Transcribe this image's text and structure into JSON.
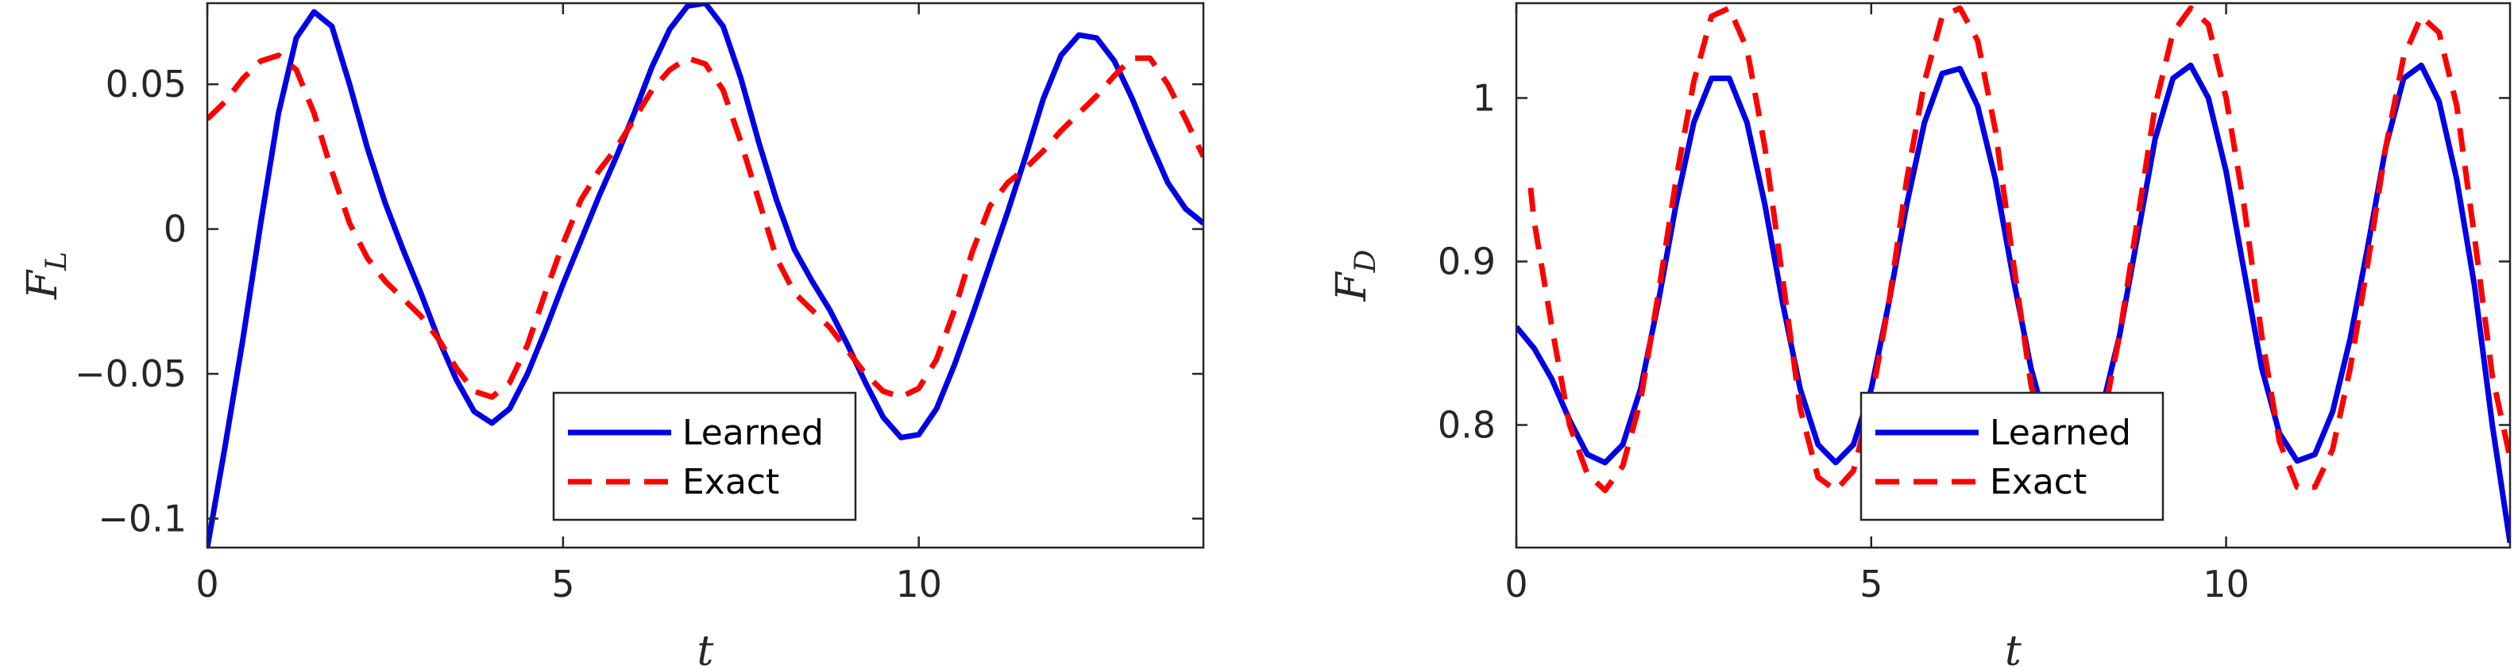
{
  "chart_data": [
    {
      "type": "line",
      "xlabel": "t",
      "ylabel": "F",
      "ylabel_sub": "L",
      "xlim": [
        0,
        14
      ],
      "ylim": [
        -0.11,
        0.078
      ],
      "xticks": [
        0,
        5,
        10
      ],
      "xtick_labels": [
        "0",
        "5",
        "10"
      ],
      "yticks": [
        -0.1,
        -0.05,
        0,
        0.05
      ],
      "ytick_labels": [
        "−0.1",
        "−0.05",
        "0",
        "0.05"
      ],
      "grid": false,
      "legend_placement": "bottom-center",
      "series": [
        {
          "name": "Learned",
          "color": "#0000e6",
          "dash": "solid",
          "x": [
            0,
            0.25,
            0.5,
            0.75,
            1.0,
            1.25,
            1.5,
            1.75,
            2.0,
            2.25,
            2.5,
            2.75,
            3.0,
            3.25,
            3.5,
            3.75,
            4.0,
            4.25,
            4.5,
            4.75,
            5.0,
            5.25,
            5.5,
            5.75,
            6.0,
            6.25,
            6.5,
            6.75,
            7.0,
            7.25,
            7.5,
            7.75,
            8.0,
            8.25,
            8.5,
            8.75,
            9.0,
            9.25,
            9.5,
            9.75,
            10.0,
            10.25,
            10.5,
            10.75,
            11.0,
            11.25,
            11.5,
            11.75,
            12.0,
            12.25,
            12.5,
            12.75,
            13.0,
            13.25,
            13.5,
            13.75,
            14.0
          ],
          "y": [
            -0.11,
            -0.075,
            -0.038,
            0.002,
            0.04,
            0.066,
            0.075,
            0.07,
            0.05,
            0.028,
            0.009,
            -0.007,
            -0.022,
            -0.038,
            -0.052,
            -0.063,
            -0.067,
            -0.062,
            -0.05,
            -0.035,
            -0.019,
            -0.004,
            0.011,
            0.025,
            0.04,
            0.056,
            0.069,
            0.077,
            0.078,
            0.07,
            0.052,
            0.03,
            0.01,
            -0.007,
            -0.018,
            -0.028,
            -0.04,
            -0.053,
            -0.065,
            -0.072,
            -0.071,
            -0.062,
            -0.047,
            -0.03,
            -0.012,
            0.006,
            0.025,
            0.045,
            0.06,
            0.067,
            0.066,
            0.058,
            0.045,
            0.03,
            0.016,
            0.007,
            0.002
          ]
        },
        {
          "name": "Exact",
          "color": "#ff0000",
          "dash": "dashed",
          "x": [
            0,
            0.25,
            0.5,
            0.75,
            1.0,
            1.25,
            1.5,
            1.75,
            2.0,
            2.25,
            2.5,
            2.75,
            3.0,
            3.25,
            3.5,
            3.75,
            4.0,
            4.25,
            4.5,
            4.75,
            5.0,
            5.25,
            5.5,
            5.75,
            6.0,
            6.25,
            6.5,
            6.75,
            7.0,
            7.25,
            7.5,
            7.75,
            8.0,
            8.25,
            8.5,
            8.75,
            9.0,
            9.25,
            9.5,
            9.75,
            10.0,
            10.25,
            10.5,
            10.75,
            11.0,
            11.25,
            11.5,
            11.75,
            12.0,
            12.25,
            12.5,
            12.75,
            13.0,
            13.25,
            13.5,
            13.75,
            14.0
          ],
          "y": [
            0.038,
            0.044,
            0.052,
            0.058,
            0.06,
            0.055,
            0.04,
            0.02,
            0.002,
            -0.01,
            -0.018,
            -0.024,
            -0.03,
            -0.038,
            -0.048,
            -0.056,
            -0.058,
            -0.053,
            -0.04,
            -0.022,
            -0.005,
            0.01,
            0.02,
            0.028,
            0.038,
            0.048,
            0.055,
            0.059,
            0.057,
            0.048,
            0.03,
            0.01,
            -0.01,
            -0.022,
            -0.028,
            -0.034,
            -0.042,
            -0.05,
            -0.056,
            -0.058,
            -0.055,
            -0.045,
            -0.028,
            -0.008,
            0.008,
            0.016,
            0.021,
            0.027,
            0.034,
            0.04,
            0.046,
            0.053,
            0.059,
            0.059,
            0.05,
            0.038,
            0.025
          ]
        }
      ]
    },
    {
      "type": "line",
      "xlabel": "t",
      "ylabel": "F",
      "ylabel_sub": "D",
      "xlim": [
        0,
        14
      ],
      "ylim": [
        0.725,
        1.058
      ],
      "xticks": [
        0,
        5,
        10
      ],
      "xtick_labels": [
        "0",
        "5",
        "10"
      ],
      "yticks": [
        0.8,
        0.9,
        1.0
      ],
      "ytick_labels": [
        "0.8",
        "0.9",
        "1"
      ],
      "grid": false,
      "legend_placement": "bottom-center",
      "series": [
        {
          "name": "Learned",
          "color": "#0000e6",
          "dash": "solid",
          "x": [
            0,
            0.25,
            0.5,
            0.75,
            1.0,
            1.25,
            1.5,
            1.75,
            2.0,
            2.25,
            2.5,
            2.75,
            3.0,
            3.25,
            3.5,
            3.75,
            4.0,
            4.25,
            4.5,
            4.75,
            5.0,
            5.25,
            5.5,
            5.75,
            6.0,
            6.25,
            6.5,
            6.75,
            7.0,
            7.25,
            7.5,
            7.75,
            8.0,
            8.25,
            8.5,
            8.75,
            9.0,
            9.25,
            9.5,
            9.75,
            10.0,
            10.25,
            10.5,
            10.75,
            11.0,
            11.25,
            11.5,
            11.75,
            12.0,
            12.25,
            12.5,
            12.75,
            13.0,
            13.25,
            13.5,
            13.75,
            14.0
          ],
          "y": [
            0.86,
            0.847,
            0.828,
            0.803,
            0.782,
            0.777,
            0.788,
            0.822,
            0.875,
            0.935,
            0.985,
            1.012,
            1.012,
            0.985,
            0.935,
            0.875,
            0.822,
            0.788,
            0.777,
            0.788,
            0.822,
            0.875,
            0.935,
            0.985,
            1.015,
            1.018,
            0.995,
            0.95,
            0.89,
            0.835,
            0.795,
            0.778,
            0.785,
            0.81,
            0.855,
            0.915,
            0.975,
            1.012,
            1.02,
            1.0,
            0.955,
            0.895,
            0.835,
            0.795,
            0.778,
            0.782,
            0.808,
            0.853,
            0.91,
            0.97,
            1.012,
            1.02,
            0.998,
            0.95,
            0.885,
            0.8,
            0.728
          ]
        },
        {
          "name": "Exact",
          "color": "#ff0000",
          "dash": "dashed",
          "x": [
            0.2,
            0.25,
            0.5,
            0.75,
            1.0,
            1.25,
            1.5,
            1.75,
            2.0,
            2.25,
            2.5,
            2.75,
            3.0,
            3.25,
            3.5,
            3.75,
            4.0,
            4.25,
            4.5,
            4.75,
            5.0,
            5.25,
            5.5,
            5.75,
            6.0,
            6.25,
            6.5,
            6.75,
            7.0,
            7.25,
            7.5,
            7.75,
            8.0,
            8.25,
            8.5,
            8.75,
            9.0,
            9.25,
            9.5,
            9.75,
            10.0,
            10.25,
            10.5,
            10.75,
            11.0,
            11.25,
            11.5,
            11.75,
            12.0,
            12.25,
            12.5,
            12.75,
            13.0,
            13.25,
            13.5,
            13.75,
            14.0
          ],
          "y": [
            0.945,
            0.925,
            0.86,
            0.8,
            0.77,
            0.76,
            0.775,
            0.815,
            0.88,
            0.95,
            1.01,
            1.05,
            1.055,
            1.03,
            0.97,
            0.89,
            0.81,
            0.768,
            0.76,
            0.772,
            0.815,
            0.875,
            0.95,
            1.01,
            1.05,
            1.055,
            1.035,
            0.98,
            0.9,
            0.825,
            0.775,
            0.76,
            0.768,
            0.8,
            0.855,
            0.925,
            0.995,
            1.04,
            1.055,
            1.045,
            1.0,
            0.935,
            0.855,
            0.79,
            0.762,
            0.762,
            0.785,
            0.835,
            0.9,
            0.97,
            1.025,
            1.05,
            1.04,
            0.995,
            0.915,
            0.83,
            0.78
          ]
        }
      ]
    }
  ]
}
